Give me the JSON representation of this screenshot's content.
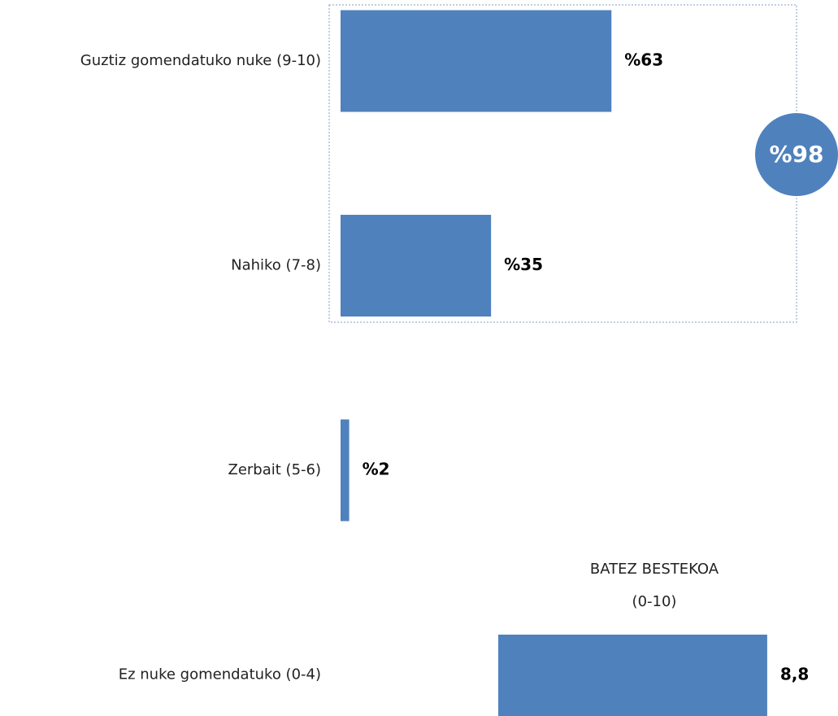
{
  "chart_data": {
    "type": "hbar",
    "categories": [
      "Guztiz gomendatuko nuke  (9-10)",
      "Nahiko (7-8)",
      "Zerbait (5-6)",
      "Ez nuke gomendatuko  (0-4)"
    ],
    "values": [
      63,
      35,
      2,
      0
    ],
    "value_labels": [
      "%63",
      "%35",
      "%2",
      null
    ],
    "color": "#4f81bd",
    "xlim": [
      0,
      100
    ],
    "total": {
      "value": 98,
      "label": "%98"
    },
    "average": {
      "title": [
        "BATEZ BESTEKOA",
        "(0-10)"
      ],
      "value": 8.8,
      "value_label": "8,8",
      "max": 10
    }
  }
}
